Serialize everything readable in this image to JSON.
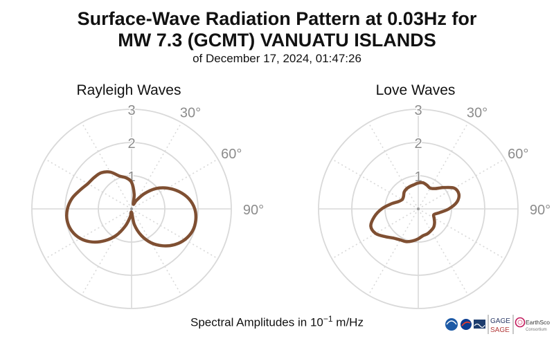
{
  "title_line1": "Surface-Wave Radiation Pattern at 0.03Hz for",
  "title_line2": "MW 7.3 (GCMT) VANUATU ISLANDS",
  "subtitle": "of December 17, 2024, 01:47:26",
  "footer": {
    "prefix": "Spectral Amplitudes in",
    "base": "10",
    "exponent": "−1",
    "suffix": "m/Hz"
  },
  "logos": {
    "gage": "GAGE",
    "sage": "SAGE",
    "earthscope": "EarthScope",
    "earthscope_sub": "Consortium"
  },
  "colors": {
    "pattern": "#7f4f32",
    "grid": "#d9d9d9",
    "label": "#8c8c8c"
  },
  "chart_data": [
    {
      "type": "polar-line",
      "title": "Rayleigh Waves",
      "r_ticks": [
        1,
        2,
        3
      ],
      "r_max": 3,
      "theta_tick_labels": [
        "30°",
        "60°",
        "90°"
      ],
      "theta_grid_step_deg": 30,
      "theta_zero": "north",
      "theta_direction": "clockwise",
      "series": [
        {
          "theta_deg": [
            0,
            10,
            20,
            30,
            40,
            50,
            60,
            70,
            80,
            90,
            100,
            110,
            120,
            130,
            140,
            150,
            160,
            170,
            180,
            190,
            200,
            210,
            220,
            230,
            240,
            250,
            260,
            270,
            280,
            290,
            300,
            310,
            320,
            330,
            340,
            350,
            360
          ],
          "r": [
            0.8,
            0.45,
            0.15,
            0.3,
            0.6,
            0.95,
            1.25,
            1.52,
            1.75,
            1.9,
            1.96,
            1.95,
            1.85,
            1.68,
            1.45,
            1.18,
            0.85,
            0.48,
            0.1,
            0.25,
            0.55,
            0.92,
            1.25,
            1.55,
            1.78,
            1.92,
            1.97,
            1.93,
            1.82,
            1.65,
            1.52,
            1.47,
            1.42,
            1.28,
            1.05,
            0.95,
            0.8
          ]
        }
      ]
    },
    {
      "type": "polar-line",
      "title": "Love Waves",
      "r_ticks": [
        1,
        2,
        3
      ],
      "r_max": 3,
      "theta_tick_labels": [
        "30°",
        "60°",
        "90°"
      ],
      "theta_grid_step_deg": 30,
      "theta_zero": "north",
      "theta_direction": "clockwise",
      "series": [
        {
          "theta_deg": [
            0,
            10,
            20,
            30,
            40,
            50,
            60,
            70,
            80,
            90,
            100,
            110,
            120,
            130,
            140,
            150,
            160,
            170,
            180,
            190,
            200,
            210,
            220,
            230,
            240,
            250,
            260,
            270,
            280,
            290,
            300,
            310,
            320,
            330,
            340,
            350,
            360
          ],
          "r": [
            0.78,
            0.8,
            0.76,
            0.72,
            0.8,
            1.0,
            1.25,
            1.3,
            1.18,
            0.92,
            0.65,
            0.5,
            0.55,
            0.64,
            0.72,
            0.76,
            0.8,
            0.82,
            0.9,
            0.98,
            1.05,
            1.08,
            1.15,
            1.3,
            1.48,
            1.52,
            1.34,
            1.1,
            0.84,
            0.64,
            0.56,
            0.58,
            0.66,
            0.7,
            0.72,
            0.74,
            0.78
          ]
        }
      ]
    }
  ]
}
